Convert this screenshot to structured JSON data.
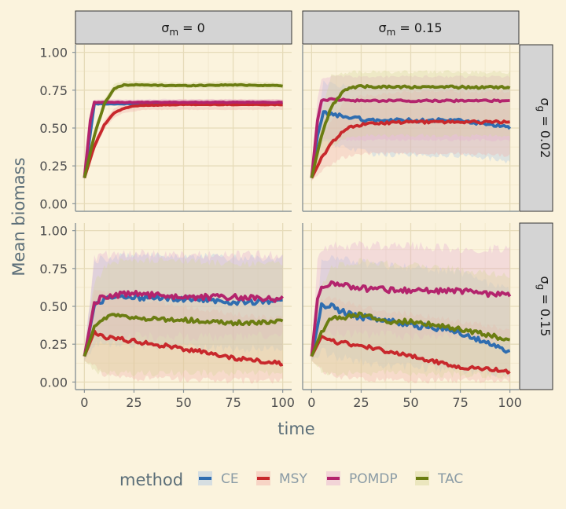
{
  "chart_data": {
    "type": "line",
    "facet_cols": [
      {
        "label_symbol": "σ",
        "label_sub": "m",
        "label_value": " = 0"
      },
      {
        "label_symbol": "σ",
        "label_sub": "m",
        "label_value": " = 0.15"
      }
    ],
    "facet_rows": [
      {
        "label_symbol": "σ",
        "label_sub": "g",
        "label_value": " = 0.02"
      },
      {
        "label_symbol": "σ",
        "label_sub": "g",
        "label_value": " = 0.15"
      }
    ],
    "xlabel": "time",
    "ylabel": "Mean biomass",
    "xlim": [
      0,
      100
    ],
    "ylim": [
      0,
      1
    ],
    "x_ticks": [
      0,
      25,
      50,
      75,
      100
    ],
    "x_tick_labels": [
      "0",
      "25",
      "50",
      "75",
      "100"
    ],
    "y_ticks": [
      0,
      0.25,
      0.5,
      0.75,
      1
    ],
    "y_tick_labels": [
      "0.00",
      "0.25",
      "0.50",
      "0.75",
      "1.00"
    ],
    "grid": true,
    "legend_title": "method",
    "legend_position": "bottom",
    "methods": [
      {
        "name": "CE",
        "color": "#2f6db0",
        "band": "#a9c6e6"
      },
      {
        "name": "MSY",
        "color": "#c8282c",
        "band": "#f2b0a8"
      },
      {
        "name": "POMDP",
        "color": "#b3246d",
        "band": "#e6b0d0"
      },
      {
        "name": "TAC",
        "color": "#6b7d12",
        "band": "#d6d69a"
      }
    ],
    "panels": [
      {
        "row": 0,
        "col": 0,
        "series": [
          {
            "name": "CE",
            "x": [
              0,
              5,
              10,
              25,
              50,
              75,
              100
            ],
            "y": [
              0.17,
              0.66,
              0.66,
              0.66,
              0.66,
              0.66,
              0.66
            ],
            "low": [
              0.16,
              0.65,
              0.65,
              0.65,
              0.65,
              0.65,
              0.65
            ],
            "high": [
              0.18,
              0.67,
              0.67,
              0.67,
              0.67,
              0.67,
              0.67
            ],
            "noise": 0.002
          },
          {
            "name": "MSY",
            "x": [
              0,
              5,
              10,
              15,
              20,
              25,
              30,
              50,
              75,
              100
            ],
            "y": [
              0.17,
              0.38,
              0.52,
              0.6,
              0.63,
              0.645,
              0.65,
              0.655,
              0.655,
              0.655
            ],
            "low": [
              0.16,
              0.35,
              0.49,
              0.57,
              0.6,
              0.61,
              0.62,
              0.62,
              0.62,
              0.62
            ],
            "high": [
              0.18,
              0.41,
              0.55,
              0.63,
              0.66,
              0.68,
              0.68,
              0.69,
              0.69,
              0.69
            ],
            "noise": 0.002
          },
          {
            "name": "POMDP",
            "x": [
              0,
              3,
              5,
              10,
              25,
              50,
              75,
              100
            ],
            "y": [
              0.17,
              0.55,
              0.67,
              0.67,
              0.67,
              0.67,
              0.67,
              0.67
            ],
            "low": [
              0.16,
              0.53,
              0.65,
              0.65,
              0.65,
              0.65,
              0.65,
              0.65
            ],
            "high": [
              0.18,
              0.57,
              0.69,
              0.69,
              0.69,
              0.69,
              0.69,
              0.69
            ],
            "noise": 0.002
          },
          {
            "name": "TAC",
            "x": [
              0,
              5,
              10,
              15,
              20,
              25,
              50,
              75,
              100
            ],
            "y": [
              0.17,
              0.45,
              0.66,
              0.76,
              0.785,
              0.785,
              0.78,
              0.785,
              0.78
            ],
            "low": [
              0.16,
              0.43,
              0.63,
              0.74,
              0.76,
              0.76,
              0.76,
              0.76,
              0.76
            ],
            "high": [
              0.18,
              0.47,
              0.69,
              0.79,
              0.81,
              0.81,
              0.8,
              0.81,
              0.8
            ],
            "noise": 0.003
          }
        ]
      },
      {
        "row": 0,
        "col": 1,
        "series": [
          {
            "name": "CE",
            "x": [
              0,
              3,
              6,
              15,
              30,
              50,
              75,
              100
            ],
            "y": [
              0.17,
              0.45,
              0.6,
              0.58,
              0.55,
              0.55,
              0.55,
              0.5
            ],
            "low": [
              0.15,
              0.35,
              0.4,
              0.38,
              0.33,
              0.32,
              0.32,
              0.28
            ],
            "high": [
              0.2,
              0.55,
              0.8,
              0.78,
              0.77,
              0.77,
              0.78,
              0.75
            ],
            "noise": 0.012
          },
          {
            "name": "MSY",
            "x": [
              0,
              5,
              10,
              15,
              20,
              30,
              50,
              75,
              100
            ],
            "y": [
              0.17,
              0.3,
              0.4,
              0.47,
              0.51,
              0.53,
              0.54,
              0.54,
              0.54
            ],
            "low": [
              0.15,
              0.22,
              0.26,
              0.3,
              0.32,
              0.33,
              0.33,
              0.33,
              0.32
            ],
            "high": [
              0.2,
              0.42,
              0.55,
              0.65,
              0.7,
              0.72,
              0.74,
              0.74,
              0.74
            ],
            "noise": 0.008
          },
          {
            "name": "POMDP",
            "x": [
              0,
              3,
              5,
              10,
              25,
              50,
              75,
              100
            ],
            "y": [
              0.17,
              0.55,
              0.68,
              0.69,
              0.68,
              0.68,
              0.68,
              0.68
            ],
            "low": [
              0.15,
              0.4,
              0.42,
              0.42,
              0.42,
              0.42,
              0.42,
              0.42
            ],
            "high": [
              0.2,
              0.7,
              0.82,
              0.84,
              0.84,
              0.84,
              0.84,
              0.84
            ],
            "noise": 0.006
          },
          {
            "name": "TAC",
            "x": [
              0,
              5,
              10,
              15,
              20,
              25,
              50,
              75,
              100
            ],
            "y": [
              0.17,
              0.45,
              0.64,
              0.73,
              0.77,
              0.775,
              0.77,
              0.77,
              0.77
            ],
            "low": [
              0.15,
              0.3,
              0.38,
              0.42,
              0.44,
              0.45,
              0.45,
              0.45,
              0.45
            ],
            "high": [
              0.2,
              0.6,
              0.85,
              0.86,
              0.87,
              0.87,
              0.87,
              0.87,
              0.87
            ],
            "noise": 0.008
          }
        ]
      },
      {
        "row": 1,
        "col": 0,
        "series": [
          {
            "name": "CE",
            "x": [
              0,
              5,
              10,
              25,
              50,
              75,
              100
            ],
            "y": [
              0.17,
              0.5,
              0.55,
              0.56,
              0.55,
              0.53,
              0.53
            ],
            "low": [
              0.14,
              0.25,
              0.25,
              0.24,
              0.23,
              0.22,
              0.22
            ],
            "high": [
              0.2,
              0.8,
              0.82,
              0.83,
              0.83,
              0.82,
              0.82
            ],
            "noise": 0.018
          },
          {
            "name": "MSY",
            "x": [
              0,
              5,
              10,
              25,
              50,
              75,
              100
            ],
            "y": [
              0.17,
              0.33,
              0.3,
              0.27,
              0.22,
              0.16,
              0.12
            ],
            "low": [
              0.14,
              0.1,
              0.05,
              0.02,
              0.02,
              0.01,
              0.01
            ],
            "high": [
              0.2,
              0.6,
              0.6,
              0.55,
              0.5,
              0.45,
              0.42
            ],
            "noise": 0.014
          },
          {
            "name": "POMDP",
            "x": [
              0,
              5,
              10,
              25,
              50,
              75,
              100
            ],
            "y": [
              0.17,
              0.52,
              0.57,
              0.58,
              0.56,
              0.56,
              0.55
            ],
            "low": [
              0.14,
              0.3,
              0.3,
              0.3,
              0.3,
              0.3,
              0.3
            ],
            "high": [
              0.2,
              0.82,
              0.84,
              0.85,
              0.84,
              0.84,
              0.84
            ],
            "noise": 0.02
          },
          {
            "name": "TAC",
            "x": [
              0,
              5,
              10,
              15,
              25,
              50,
              75,
              100
            ],
            "y": [
              0.17,
              0.36,
              0.42,
              0.45,
              0.42,
              0.41,
              0.39,
              0.4
            ],
            "low": [
              0.14,
              0.08,
              0.06,
              0.06,
              0.06,
              0.06,
              0.06,
              0.06
            ],
            "high": [
              0.2,
              0.65,
              0.75,
              0.8,
              0.8,
              0.8,
              0.78,
              0.78
            ],
            "noise": 0.015
          }
        ]
      },
      {
        "row": 1,
        "col": 1,
        "series": [
          {
            "name": "CE",
            "x": [
              0,
              5,
              10,
              20,
              30,
              50,
              75,
              100
            ],
            "y": [
              0.17,
              0.5,
              0.5,
              0.44,
              0.42,
              0.38,
              0.33,
              0.2
            ],
            "low": [
              0.14,
              0.2,
              0.18,
              0.14,
              0.12,
              0.1,
              0.08,
              0.04
            ],
            "high": [
              0.2,
              0.8,
              0.82,
              0.8,
              0.78,
              0.75,
              0.72,
              0.6
            ],
            "noise": 0.02
          },
          {
            "name": "MSY",
            "x": [
              0,
              5,
              10,
              25,
              50,
              75,
              100
            ],
            "y": [
              0.17,
              0.3,
              0.27,
              0.24,
              0.17,
              0.1,
              0.07
            ],
            "low": [
              0.14,
              0.08,
              0.04,
              0.02,
              0.01,
              0.01,
              0.01
            ],
            "high": [
              0.2,
              0.55,
              0.55,
              0.5,
              0.45,
              0.4,
              0.35
            ],
            "noise": 0.013
          },
          {
            "name": "POMDP",
            "x": [
              0,
              3,
              5,
              10,
              25,
              50,
              75,
              100
            ],
            "y": [
              0.17,
              0.55,
              0.62,
              0.65,
              0.62,
              0.6,
              0.6,
              0.57
            ],
            "low": [
              0.14,
              0.3,
              0.32,
              0.32,
              0.32,
              0.3,
              0.3,
              0.28
            ],
            "high": [
              0.2,
              0.8,
              0.88,
              0.9,
              0.9,
              0.9,
              0.88,
              0.88
            ],
            "noise": 0.02
          },
          {
            "name": "TAC",
            "x": [
              0,
              5,
              10,
              15,
              25,
              40,
              50,
              75,
              100
            ],
            "y": [
              0.17,
              0.33,
              0.42,
              0.42,
              0.45,
              0.4,
              0.4,
              0.35,
              0.28
            ],
            "low": [
              0.14,
              0.08,
              0.06,
              0.06,
              0.06,
              0.06,
              0.05,
              0.05,
              0.04
            ],
            "high": [
              0.2,
              0.62,
              0.75,
              0.78,
              0.8,
              0.78,
              0.78,
              0.74,
              0.7
            ],
            "noise": 0.015
          }
        ]
      }
    ]
  }
}
